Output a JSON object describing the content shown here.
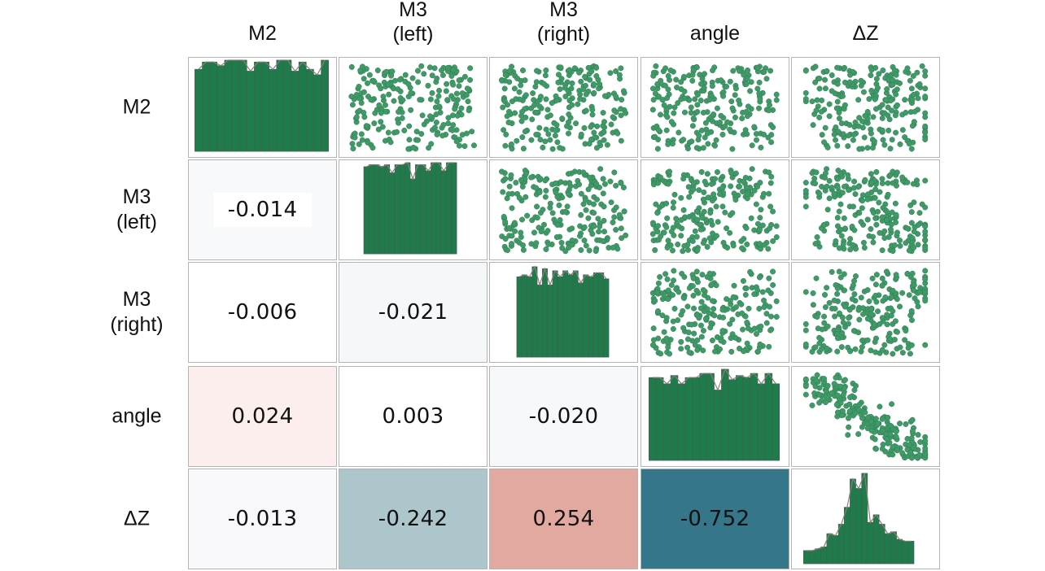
{
  "chart_data": {
    "type": "pairplot",
    "variables": [
      "M2",
      "M3\n(left)",
      "M3\n(right)",
      "angle",
      "ΔZ"
    ],
    "lower_triangle": "pearson correlation",
    "correlations": [
      {
        "row": "M3 (left)",
        "col": "M2",
        "value": "-0.014"
      },
      {
        "row": "M3 (right)",
        "col": "M2",
        "value": "-0.006"
      },
      {
        "row": "M3 (right)",
        "col": "M3 (left)",
        "value": "-0.021"
      },
      {
        "row": "angle",
        "col": "M2",
        "value": "0.024"
      },
      {
        "row": "angle",
        "col": "M3 (left)",
        "value": "0.003"
      },
      {
        "row": "angle",
        "col": "M3 (right)",
        "value": "-0.020"
      },
      {
        "row": "ΔZ",
        "col": "M2",
        "value": "-0.013"
      },
      {
        "row": "ΔZ",
        "col": "M3 (left)",
        "value": "-0.242"
      },
      {
        "row": "ΔZ",
        "col": "M3 (right)",
        "value": "0.254"
      },
      {
        "row": "ΔZ",
        "col": "angle",
        "value": "-0.752"
      }
    ],
    "correlation_colors": {
      "M3 (left)|M2": "#f8f9fb",
      "M3 (right)|M2": "#ffffff",
      "M3 (right)|M3 (left)": "#f4f8f9",
      "angle|M2": "#fbeeec",
      "angle|M3 (left)": "#ffffff",
      "angle|M3 (right)": "#f6f9fa",
      "ΔZ|M2": "#f9f9fc",
      "ΔZ|M3 (left)": "#adc6cc",
      "ΔZ|M3 (right)": "#e2a9a0",
      "ΔZ|angle": "#36768b"
    },
    "histograms": [
      {
        "variable": "M2",
        "counts": [
          45,
          49,
          49,
          47,
          50,
          50,
          50,
          44,
          49,
          49,
          45,
          50,
          50,
          44,
          49,
          45,
          42,
          50
        ]
      },
      {
        "variable": "M3 (left)",
        "counts": [
          43,
          44,
          44,
          43,
          44,
          40,
          44,
          44,
          45,
          37,
          44,
          44,
          41,
          45,
          45,
          41,
          45,
          45
        ]
      },
      {
        "variable": "M3 (right)",
        "counts": [
          40,
          41,
          40,
          45,
          36,
          44,
          36,
          43,
          40,
          43,
          41,
          43,
          37,
          41,
          40,
          42,
          42,
          39
        ]
      },
      {
        "variable": "angle",
        "counts": [
          40,
          40,
          37,
          41,
          37,
          40,
          40,
          42,
          42,
          34,
          44,
          39,
          41,
          40,
          42,
          37,
          42,
          37
        ]
      },
      {
        "variable": "ΔZ",
        "counts": [
          7,
          7,
          8,
          9,
          16,
          15,
          21,
          30,
          45,
          40,
          48,
          22,
          26,
          21,
          16,
          17,
          13,
          12,
          12
        ]
      }
    ],
    "scatter_color": "#3f9a68",
    "bar_color": "#1e7b4a",
    "bar_edge": "#555555"
  }
}
